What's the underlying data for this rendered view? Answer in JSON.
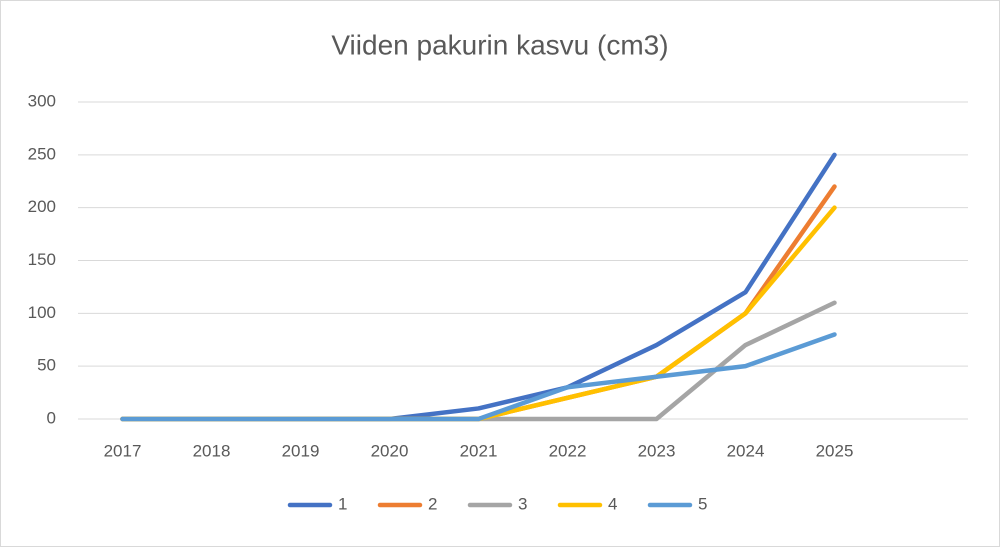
{
  "chart_data": {
    "type": "line",
    "title": "Viiden pakurin kasvu (cm3)",
    "categories": [
      "2017",
      "2018",
      "2019",
      "2020",
      "2021",
      "2022",
      "2023",
      "2024",
      "2025",
      null
    ],
    "series": [
      {
        "name": "1",
        "color": "#4472c4",
        "values": [
          0,
          0,
          0,
          0,
          10,
          30,
          70,
          120,
          250,
          null
        ]
      },
      {
        "name": "2",
        "color": "#ed7d31",
        "values": [
          0,
          0,
          0,
          0,
          0,
          20,
          40,
          100,
          220,
          null
        ]
      },
      {
        "name": "3",
        "color": "#a5a5a5",
        "values": [
          0,
          0,
          0,
          0,
          0,
          0,
          0,
          70,
          110,
          null
        ]
      },
      {
        "name": "4",
        "color": "#ffc000",
        "values": [
          0,
          0,
          0,
          0,
          0,
          20,
          40,
          100,
          200,
          null
        ]
      },
      {
        "name": "5",
        "color": "#5b9bd5",
        "values": [
          0,
          0,
          0,
          0,
          0,
          30,
          40,
          50,
          80,
          null
        ]
      }
    ],
    "ylim": [
      0,
      300
    ],
    "yticks": [
      0,
      50,
      100,
      150,
      200,
      250,
      300
    ],
    "grid": true,
    "legend": "bottom"
  }
}
